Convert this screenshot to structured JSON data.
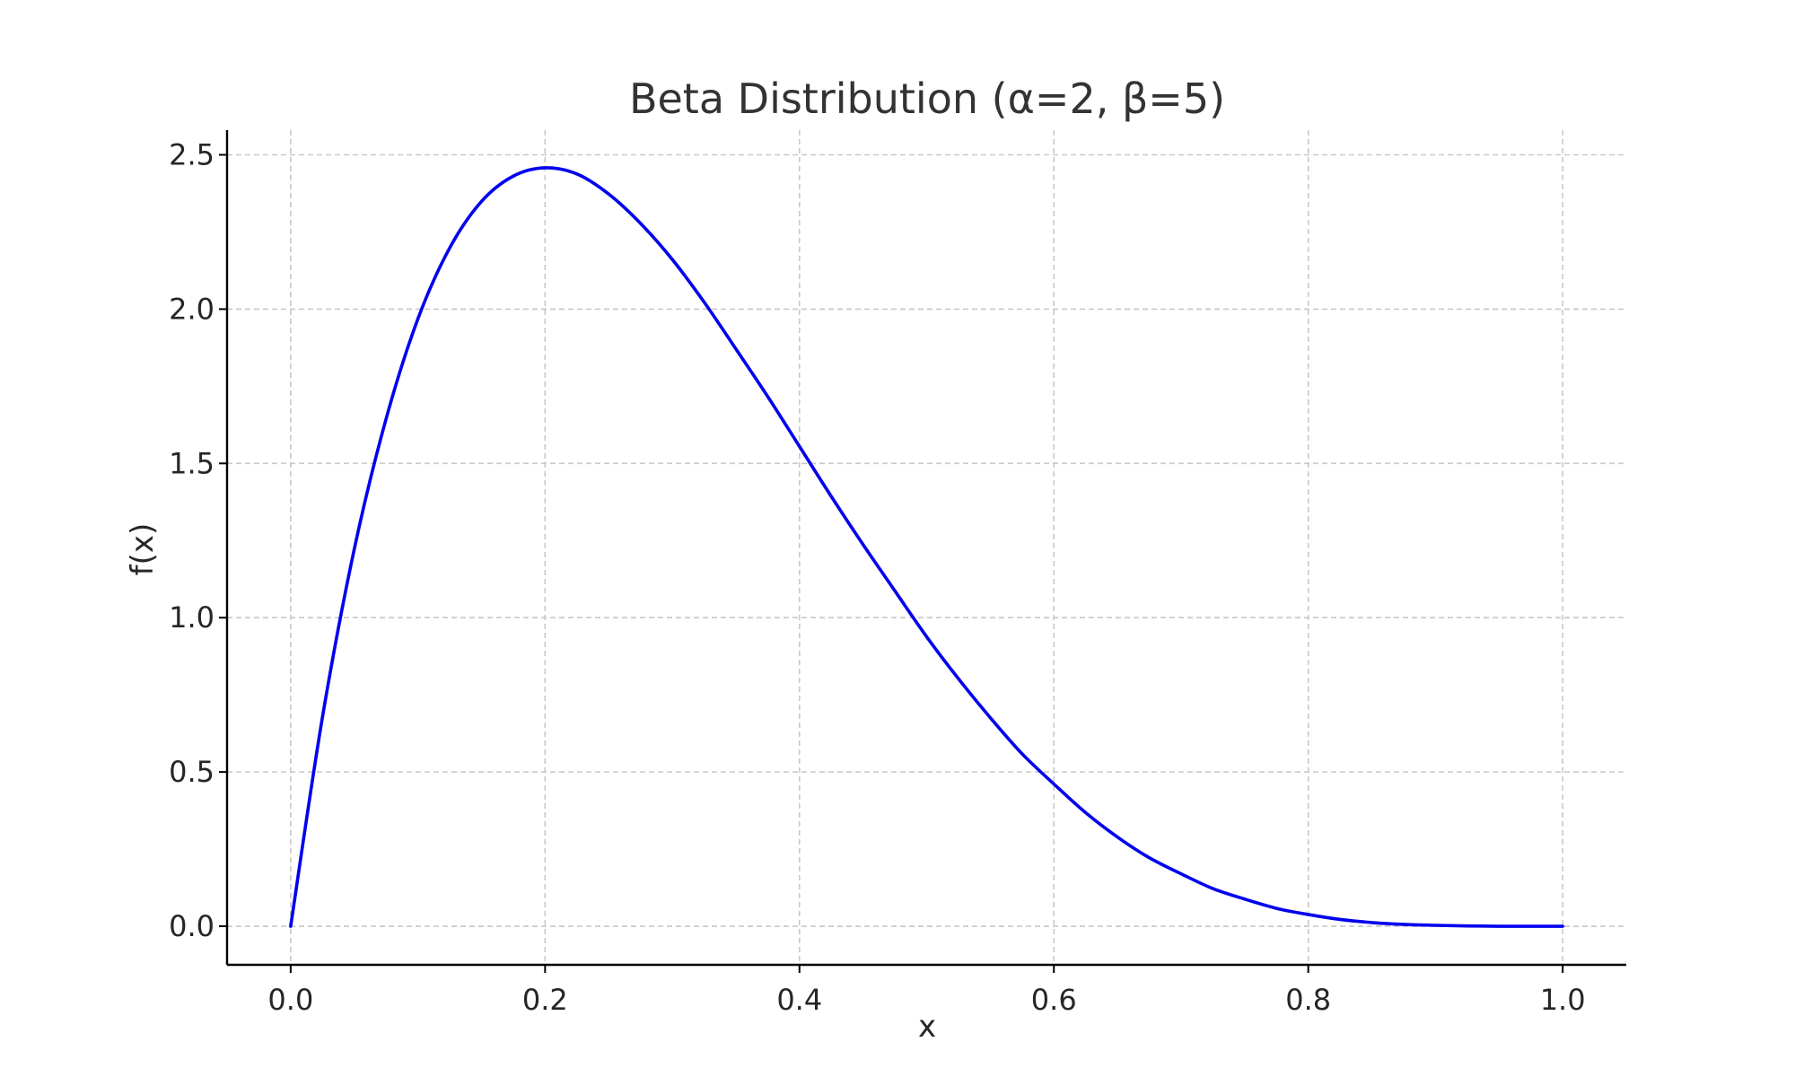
{
  "chart_data": {
    "type": "line",
    "title": "Beta Distribution (α=2, β=5)",
    "xlabel": "x",
    "ylabel": "f(x)",
    "xlim": [
      -0.05,
      1.05
    ],
    "ylim": [
      -0.125,
      2.58
    ],
    "x_ticks": [
      0.0,
      0.2,
      0.4,
      0.6,
      0.8,
      1.0
    ],
    "x_tick_labels": [
      "0.0",
      "0.2",
      "0.4",
      "0.6",
      "0.8",
      "1.0"
    ],
    "y_ticks": [
      0.0,
      0.5,
      1.0,
      1.5,
      2.0,
      2.5
    ],
    "y_tick_labels": [
      "0.0",
      "0.5",
      "1.0",
      "1.5",
      "2.0",
      "2.5"
    ],
    "grid": true,
    "grid_style": "dashed",
    "spines": [
      "left",
      "bottom"
    ],
    "colors": {
      "line": "#0000ee",
      "grid": "#c8c8c8",
      "axis": "#000000",
      "text": "#262626"
    },
    "series": [
      {
        "x": [
          0.0,
          0.025,
          0.05,
          0.075,
          0.1,
          0.125,
          0.15,
          0.175,
          0.2,
          0.225,
          0.25,
          0.275,
          0.3,
          0.325,
          0.35,
          0.375,
          0.4,
          0.425,
          0.45,
          0.475,
          0.5,
          0.525,
          0.55,
          0.575,
          0.6,
          0.625,
          0.65,
          0.675,
          0.7,
          0.725,
          0.75,
          0.775,
          0.8,
          0.825,
          0.85,
          0.875,
          0.9,
          0.925,
          0.95,
          0.975,
          1.0
        ],
        "values": [
          0.0,
          0.678,
          1.222,
          1.644,
          1.968,
          2.198,
          2.349,
          2.431,
          2.458,
          2.438,
          2.373,
          2.278,
          2.161,
          2.023,
          1.871,
          1.717,
          1.555,
          1.393,
          1.237,
          1.087,
          0.938,
          0.802,
          0.676,
          0.559,
          0.461,
          0.368,
          0.289,
          0.222,
          0.17,
          0.122,
          0.088,
          0.058,
          0.038,
          0.022,
          0.012,
          0.006,
          0.003,
          0.001,
          0.0,
          0.0,
          0.0
        ]
      }
    ]
  }
}
